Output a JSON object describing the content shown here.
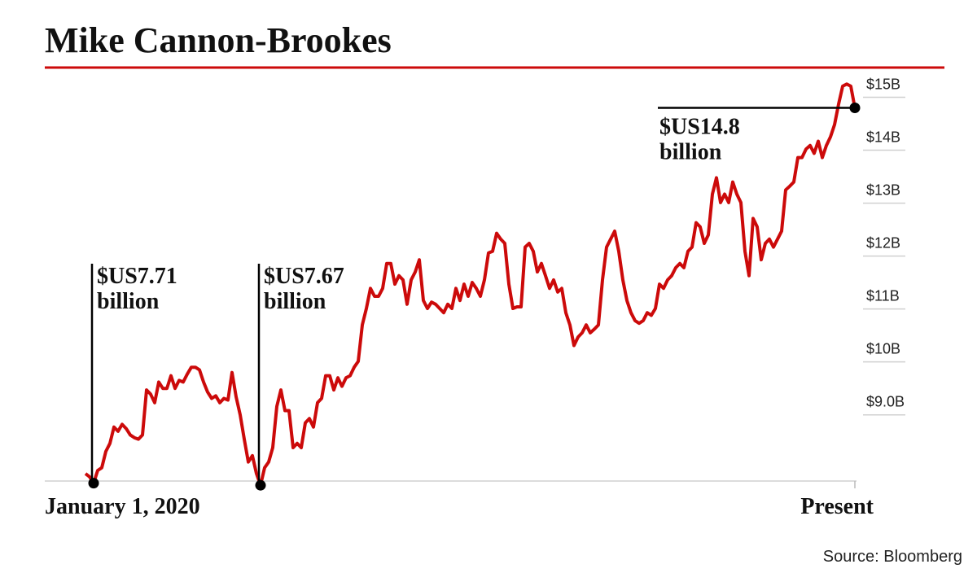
{
  "chart_data": {
    "type": "line",
    "title": "Mike Cannon-Brookes",
    "source": "Source: Bloomberg",
    "color": "#cc0a0a",
    "categories": [
      "January 1, 2020",
      null,
      null,
      null,
      null,
      null,
      null,
      null,
      null,
      null,
      null,
      null,
      null,
      null,
      null,
      null,
      null,
      null,
      null,
      null,
      null,
      null,
      null,
      null,
      null,
      null,
      null,
      null,
      null,
      null,
      null,
      null,
      null,
      null,
      null,
      null,
      null,
      null,
      null,
      null,
      null,
      null,
      null,
      null,
      null,
      null,
      null,
      null,
      null,
      null,
      null,
      null,
      null,
      null,
      null,
      null,
      null,
      null,
      null,
      null,
      null,
      null,
      null,
      null,
      null,
      null,
      null,
      null,
      null,
      null,
      null,
      null,
      null,
      null,
      null,
      null,
      null,
      null,
      null,
      null,
      null,
      null,
      null,
      null,
      null,
      null,
      null,
      null,
      null,
      null,
      null,
      null,
      null,
      null,
      null,
      null,
      null,
      null,
      null,
      null,
      null,
      null,
      null,
      null,
      null,
      null,
      null,
      null,
      null,
      null,
      null,
      null,
      null,
      null,
      null,
      null,
      null,
      null,
      null,
      null,
      null,
      null,
      null,
      null,
      null,
      null,
      null,
      null,
      null,
      null,
      null,
      null,
      null,
      null,
      null,
      null,
      null,
      null,
      null,
      null,
      null,
      null,
      null,
      null,
      null,
      null,
      null,
      null,
      null,
      null,
      null,
      null,
      null,
      null,
      null,
      null,
      null,
      null,
      null,
      null,
      null,
      null,
      null,
      null,
      null,
      null,
      null,
      null,
      null,
      null,
      null,
      null,
      null,
      null,
      null,
      null,
      null,
      null,
      null,
      null,
      null,
      null,
      null,
      null,
      null,
      null,
      null,
      null,
      null,
      "Present"
    ],
    "values": [
      7.89,
      7.83,
      7.71,
      7.95,
      8.0,
      8.31,
      8.46,
      8.77,
      8.69,
      8.82,
      8.74,
      8.62,
      8.57,
      8.54,
      8.62,
      9.47,
      9.39,
      9.23,
      9.62,
      9.5,
      9.5,
      9.74,
      9.5,
      9.65,
      9.62,
      9.77,
      9.9,
      9.9,
      9.85,
      9.62,
      9.43,
      9.31,
      9.36,
      9.23,
      9.31,
      9.28,
      9.8,
      9.34,
      9.0,
      8.54,
      8.11,
      8.23,
      7.89,
      7.67,
      8.0,
      8.11,
      8.38,
      9.16,
      9.47,
      9.08,
      9.08,
      8.38,
      8.46,
      8.38,
      8.85,
      8.93,
      8.77,
      9.23,
      9.31,
      9.74,
      9.74,
      9.47,
      9.7,
      9.54,
      9.7,
      9.74,
      9.9,
      10.01,
      10.7,
      11.01,
      11.39,
      11.24,
      11.24,
      11.39,
      11.86,
      11.86,
      11.47,
      11.63,
      11.55,
      11.09,
      11.55,
      11.7,
      11.93,
      11.16,
      11.01,
      11.13,
      11.09,
      11.01,
      10.93,
      11.09,
      11.01,
      11.39,
      11.16,
      11.47,
      11.24,
      11.5,
      11.39,
      11.24,
      11.55,
      12.06,
      12.09,
      12.43,
      12.32,
      12.24,
      11.47,
      11.01,
      11.04,
      11.04,
      12.17,
      12.24,
      12.09,
      11.7,
      11.86,
      11.63,
      11.39,
      11.55,
      11.32,
      11.39,
      10.93,
      10.7,
      10.31,
      10.47,
      10.55,
      10.7,
      10.55,
      10.62,
      10.7,
      11.55,
      12.17,
      12.32,
      12.47,
      12.09,
      11.55,
      11.16,
      10.93,
      10.78,
      10.73,
      10.78,
      10.93,
      10.88,
      11.01,
      11.47,
      11.39,
      11.55,
      11.63,
      11.78,
      11.86,
      11.78,
      12.09,
      12.17,
      12.63,
      12.55,
      12.24,
      12.4,
      13.17,
      13.48,
      13.01,
      13.17,
      13.01,
      13.4,
      13.17,
      13.01,
      12.09,
      11.63,
      12.71,
      12.55,
      11.93,
      12.24,
      12.32,
      12.17,
      12.32,
      12.47,
      13.25,
      13.32,
      13.4,
      13.86,
      13.86,
      14.02,
      14.09,
      13.94,
      14.17,
      13.86,
      14.09,
      14.25,
      14.48,
      14.87,
      15.21,
      15.25,
      15.21,
      14.8
    ],
    "annotations": [
      {
        "text": [
          "$US7.71",
          "billion"
        ],
        "value": 7.71
      },
      {
        "text": [
          "$US7.67",
          "billion"
        ],
        "value": 7.67
      },
      {
        "text": [
          "$US14.8",
          "billion"
        ],
        "value": 14.8
      }
    ],
    "ylim": [
      7.75,
      15.3
    ],
    "yticks": [
      {
        "value": 9,
        "label": "$9.0B"
      },
      {
        "value": 10,
        "label": "$10B"
      },
      {
        "value": 11,
        "label": "$11B"
      },
      {
        "value": 12,
        "label": "$12B"
      },
      {
        "value": 13,
        "label": "$13B"
      },
      {
        "value": 14,
        "label": "$14B"
      },
      {
        "value": 15,
        "label": "$15B"
      }
    ]
  }
}
